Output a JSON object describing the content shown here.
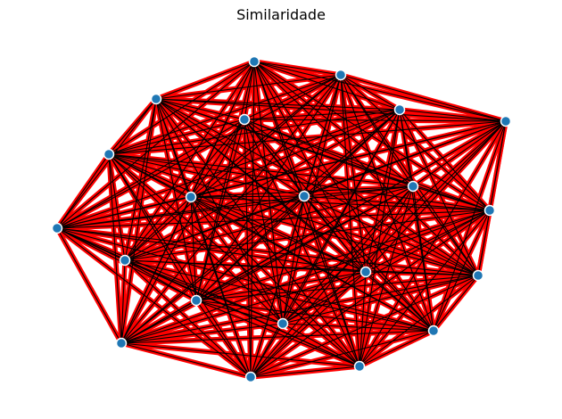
{
  "title": "Similaridade",
  "colors": {
    "edge_outer": "#ff0000",
    "edge_inner": "#000000",
    "node_fill": "#1f77b4",
    "node_stroke": "#ffffff"
  },
  "graph": {
    "type": "complete",
    "node_count": 22,
    "edge_style": "black line over thick red line"
  }
}
